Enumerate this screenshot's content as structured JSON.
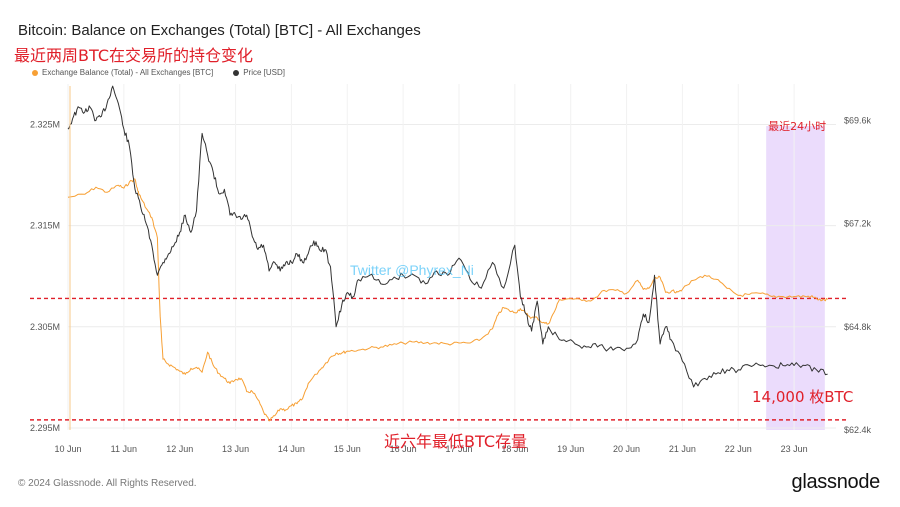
{
  "header": {
    "title": "Bitcoin: Balance on Exchanges (Total) [BTC] - All Exchanges",
    "annotation_title": "最近两周BTC在交易所的持仓变化"
  },
  "legend": {
    "balance_label": "Exchange Balance (Total) - All Exchanges [BTC]",
    "price_label": "Price [USD]"
  },
  "annotations": {
    "last24h": "最近24小时",
    "watermark": "Twitter @Phyrex_Ni",
    "amount": "14,000 枚BTC",
    "lowest": "近六年最低BTC存量"
  },
  "footer": {
    "copyright": "© 2024 Glassnode. All Rights Reserved.",
    "brand": "glassnode"
  },
  "colors": {
    "balance": "#f7a035",
    "price": "#333333",
    "annotation": "#e0202a",
    "highlight": "#e7d6fb",
    "watermark": "#4fc3f7"
  },
  "chart_data": {
    "type": "line",
    "title": "Bitcoin: Balance on Exchanges (Total) [BTC] - All Exchanges",
    "x_ticks": [
      "10 Jun",
      "11 Jun",
      "12 Jun",
      "13 Jun",
      "14 Jun",
      "15 Jun",
      "16 Jun",
      "17 Jun",
      "18 Jun",
      "19 Jun",
      "20 Jun",
      "21 Jun",
      "22 Jun",
      "23 Jun"
    ],
    "y_left_ticks": [
      "2.325M",
      "2.315M",
      "2.305M",
      "2.295M"
    ],
    "y_right_ticks": [
      "$69.6k",
      "$67.2k",
      "$64.8k",
      "$62.4k"
    ],
    "y_left_range": [
      2294800,
      2329000
    ],
    "y_right_range": [
      62400,
      70450
    ],
    "x_range": [
      0,
      13.75
    ],
    "series": [
      {
        "name": "Exchange Balance (Total) - All Exchanges [BTC]",
        "axis": "left",
        "x": [
          0,
          0.3,
          0.5,
          0.7,
          0.9,
          1.0,
          1.1,
          1.2,
          1.25,
          1.3,
          1.4,
          1.5,
          1.6,
          1.65,
          1.7,
          1.8,
          1.9,
          2.0,
          2.1,
          2.2,
          2.3,
          2.4,
          2.5,
          2.6,
          2.7,
          2.8,
          2.9,
          3.0,
          3.1,
          3.2,
          3.3,
          3.4,
          3.5,
          3.6,
          3.7,
          3.8,
          3.9,
          4.0,
          4.1,
          4.2,
          4.3,
          4.5,
          4.6,
          4.7,
          4.8,
          4.9,
          5.0,
          5.2,
          5.4,
          5.6,
          5.8,
          6.0,
          6.2,
          6.4,
          6.6,
          6.8,
          7.0,
          7.2,
          7.4,
          7.6,
          7.7,
          7.8,
          7.9,
          8.0,
          8.1,
          8.2,
          8.3,
          8.4,
          8.5,
          8.6,
          8.7,
          8.8,
          9.0,
          9.2,
          9.4,
          9.6,
          9.8,
          10.0,
          10.2,
          10.3,
          10.4,
          10.5,
          10.6,
          10.7,
          10.8,
          10.9,
          11.0,
          11.2,
          11.4,
          11.6,
          11.8,
          12.0,
          12.2,
          12.4,
          12.6,
          12.8,
          13.0,
          13.2,
          13.3,
          13.4,
          13.5,
          13.6
        ],
        "y": [
          2317800,
          2318100,
          2318800,
          2318300,
          2319000,
          2318700,
          2319300,
          2319600,
          2318400,
          2317800,
          2316700,
          2315800,
          2313800,
          2306000,
          2301800,
          2301300,
          2301000,
          2300600,
          2300300,
          2300900,
          2301000,
          2300500,
          2302500,
          2301200,
          2300400,
          2299900,
          2299400,
          2299800,
          2299900,
          2298600,
          2298600,
          2297800,
          2296600,
          2295700,
          2296200,
          2296900,
          2296800,
          2297200,
          2297400,
          2297900,
          2299400,
          2300700,
          2301300,
          2302000,
          2302400,
          2302400,
          2302600,
          2302700,
          2302900,
          2303000,
          2303200,
          2303400,
          2303500,
          2303400,
          2303400,
          2303300,
          2303400,
          2303400,
          2303800,
          2304800,
          2306200,
          2306900,
          2306600,
          2306400,
          2306800,
          2306300,
          2305900,
          2305900,
          2305400,
          2305300,
          2306400,
          2307700,
          2307800,
          2307600,
          2307700,
          2308600,
          2308600,
          2308300,
          2309600,
          2308700,
          2308800,
          2309700,
          2309900,
          2308400,
          2308500,
          2308500,
          2308700,
          2309600,
          2310100,
          2309700,
          2308800,
          2308100,
          2308200,
          2308300,
          2308000,
          2308000,
          2308000,
          2308000,
          2308000,
          2307800,
          2307600,
          2307700
        ]
      },
      {
        "name": "Price [USD]",
        "axis": "right",
        "x": [
          0,
          0.1,
          0.2,
          0.3,
          0.4,
          0.5,
          0.6,
          0.7,
          0.8,
          0.9,
          1.0,
          1.1,
          1.2,
          1.3,
          1.4,
          1.5,
          1.6,
          1.7,
          1.8,
          1.9,
          2.0,
          2.1,
          2.2,
          2.3,
          2.4,
          2.5,
          2.6,
          2.7,
          2.8,
          2.9,
          3.0,
          3.1,
          3.2,
          3.3,
          3.4,
          3.5,
          3.6,
          3.7,
          3.8,
          3.9,
          4.0,
          4.1,
          4.2,
          4.3,
          4.4,
          4.5,
          4.6,
          4.7,
          4.8,
          4.9,
          5.0,
          5.1,
          5.2,
          5.4,
          5.6,
          5.8,
          6.0,
          6.2,
          6.4,
          6.6,
          6.8,
          7.0,
          7.2,
          7.4,
          7.6,
          7.8,
          8.0,
          8.1,
          8.2,
          8.3,
          8.4,
          8.5,
          8.6,
          8.8,
          9.0,
          9.2,
          9.4,
          9.6,
          9.8,
          10.0,
          10.2,
          10.3,
          10.4,
          10.5,
          10.6,
          10.7,
          10.8,
          11.0,
          11.2,
          11.4,
          11.6,
          11.8,
          12.0,
          12.2,
          12.4,
          12.6,
          12.8,
          13.0,
          13.2,
          13.4,
          13.6
        ],
        "y": [
          69400,
          69700,
          69900,
          69800,
          69900,
          69600,
          69700,
          70000,
          70400,
          70000,
          69400,
          69000,
          68000,
          67600,
          67200,
          66700,
          66000,
          66300,
          66500,
          66700,
          67000,
          67400,
          67000,
          67500,
          69300,
          68800,
          68400,
          67900,
          68000,
          67400,
          67400,
          67300,
          67400,
          66900,
          66600,
          66700,
          66100,
          66300,
          66100,
          66300,
          66300,
          66500,
          66300,
          66500,
          66800,
          66600,
          66600,
          66200,
          64800,
          65300,
          65600,
          65500,
          65900,
          66000,
          65800,
          65900,
          66000,
          66000,
          65800,
          66100,
          66000,
          66400,
          65900,
          65700,
          66300,
          65700,
          66700,
          65500,
          65100,
          64700,
          65400,
          64400,
          64800,
          64500,
          64500,
          64300,
          64400,
          64300,
          64300,
          64300,
          64500,
          65100,
          64900,
          66000,
          64400,
          64800,
          64500,
          64000,
          63400,
          63600,
          63700,
          63800,
          63800,
          63900,
          63900,
          63900,
          63900,
          63900,
          63900,
          63800,
          63700
        ]
      }
    ],
    "highlight_x_range": [
      12.5,
      13.55
    ],
    "reference_lines": [
      {
        "axis": "left",
        "y": 2307800,
        "style": "dashed"
      },
      {
        "axis": "left",
        "y": 2295800,
        "style": "dashed"
      }
    ],
    "grid": true,
    "legend_position": "top-left"
  }
}
